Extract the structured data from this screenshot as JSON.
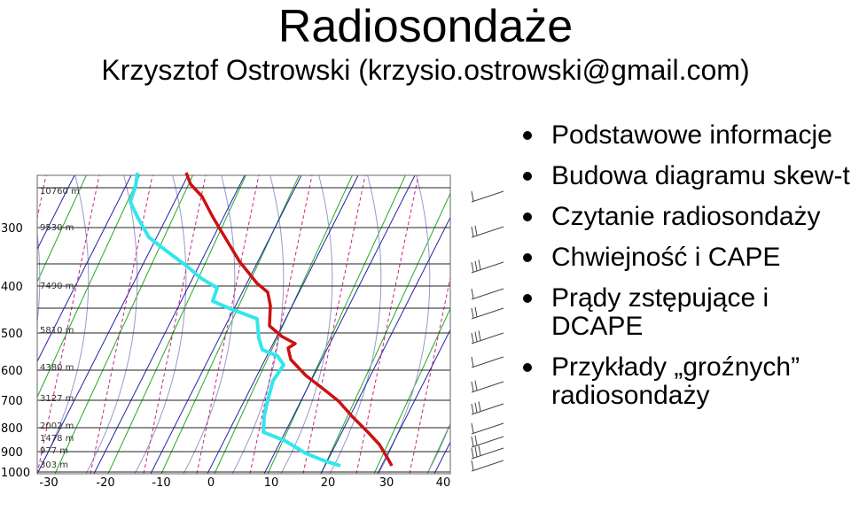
{
  "slide": {
    "title": "Radiosondaże",
    "subtitle": "Krzysztof Ostrowski (krzysio.ostrowski@gmail.com)"
  },
  "bullets": [
    "Podstawowe informacje",
    "Budowa diagramu skew-t",
    "Czytanie radiosondaży",
    "Chwiejność i CAPE",
    "Prądy zstępujące i DCAPE",
    "Przykłady „groźnych” radiosondaży"
  ],
  "skewt": {
    "pressure_labels": [
      "300",
      "400",
      "500",
      "600",
      "700",
      "800",
      "900",
      "1000"
    ],
    "temp_labels": [
      "-30",
      "-20",
      "-10",
      "0",
      "10",
      "20",
      "30",
      "40"
    ],
    "height_labels": [
      "10760 m",
      "9530 m",
      "7490 m",
      "5810 m",
      "4380 m",
      "3127 m",
      "2002 m",
      "1478 m",
      "977 m",
      "303 m"
    ],
    "colors": {
      "temperature": "#cc1111",
      "dewpoint": "#33e6ee",
      "isotherm": "#2222aa",
      "dry_adiabat": "#22aa22",
      "moist_adiabat": "#9999cc",
      "mixing_ratio": "#cc2288"
    }
  }
}
